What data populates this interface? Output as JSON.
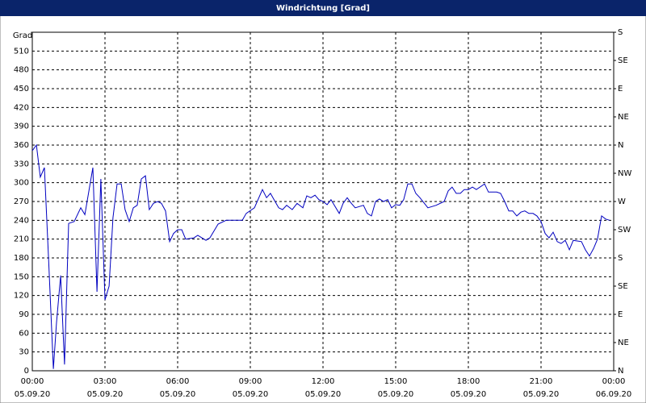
{
  "window_title": "Windrichtung [Grad]",
  "chart_data": {
    "type": "line",
    "ylabel": "Grad",
    "x": [
      0,
      0.17,
      0.33,
      0.5,
      0.67,
      0.87,
      1,
      1.17,
      1.33,
      1.5,
      1.73,
      2,
      2.17,
      2.5,
      2.67,
      2.83,
      3,
      3.17,
      3.33,
      3.5,
      3.67,
      3.83,
      4,
      4.17,
      4.33,
      4.5,
      4.67,
      4.83,
      5,
      5.17,
      5.33,
      5.5,
      5.67,
      5.83,
      6,
      6.17,
      6.33,
      6.67,
      6.83,
      7.17,
      7.33,
      7.67,
      8,
      8.67,
      8.83,
      9.17,
      9.5,
      9.67,
      9.83,
      10.17,
      10.33,
      10.5,
      10.73,
      10.93,
      11.17,
      11.33,
      11.5,
      11.67,
      11.83,
      12,
      12.17,
      12.33,
      12.67,
      12.83,
      13,
      13.17,
      13.33,
      13.67,
      13.83,
      14,
      14.17,
      14.33,
      14.5,
      14.67,
      14.83,
      15,
      15.17,
      15.33,
      15.5,
      15.67,
      15.83,
      16,
      16.33,
      16.67,
      17,
      17.17,
      17.33,
      17.5,
      17.67,
      17.83,
      18,
      18.17,
      18.33,
      18.67,
      18.83,
      19.17,
      19.33,
      19.5,
      19.67,
      19.83,
      20,
      20.17,
      20.33,
      20.5,
      20.67,
      20.83,
      21,
      21.17,
      21.33,
      21.5,
      21.67,
      21.83,
      22,
      22.17,
      22.33,
      22.67,
      22.83,
      23,
      23.17,
      23.33,
      23.5,
      23.67,
      23.83
    ],
    "series": [
      {
        "name": "Windrichtung",
        "color": "#0000c0",
        "values": [
          351,
          360,
          309,
          324,
          180,
          3,
          77,
          152,
          10,
          235,
          238,
          260,
          249,
          324,
          126,
          306,
          113,
          135,
          244,
          298,
          298,
          257,
          238,
          260,
          264,
          306,
          311,
          257,
          267,
          270,
          267,
          255,
          206,
          219,
          225,
          225,
          210,
          212,
          216,
          208,
          212,
          234,
          240,
          240,
          251,
          260,
          289,
          276,
          283,
          260,
          257,
          264,
          257,
          267,
          260,
          279,
          276,
          280,
          273,
          270,
          265,
          273,
          251,
          267,
          276,
          267,
          260,
          264,
          251,
          247,
          270,
          274,
          270,
          273,
          260,
          265,
          264,
          273,
          298,
          298,
          283,
          276,
          260,
          264,
          270,
          287,
          293,
          283,
          283,
          289,
          289,
          293,
          289,
          298,
          285,
          285,
          283,
          270,
          255,
          255,
          247,
          253,
          255,
          251,
          251,
          247,
          238,
          219,
          212,
          221,
          206,
          203,
          208,
          193,
          208,
          206,
          193,
          183,
          195,
          210,
          247,
          242,
          240
        ]
      }
    ],
    "xlim": [
      0,
      24
    ],
    "xticks": [
      {
        "value": 0,
        "label": "00:00"
      },
      {
        "value": 3,
        "label": "03:00"
      },
      {
        "value": 6,
        "label": "06:00"
      },
      {
        "value": 9,
        "label": "09:00"
      },
      {
        "value": 12,
        "label": "12:00"
      },
      {
        "value": 15,
        "label": "15:00"
      },
      {
        "value": 18,
        "label": "18:00"
      },
      {
        "value": 21,
        "label": "21:00"
      },
      {
        "value": 24,
        "label": "00:00"
      }
    ],
    "xtick_dates": [
      "05.09.20",
      "05.09.20",
      "05.09.20",
      "05.09.20",
      "05.09.20",
      "05.09.20",
      "05.09.20",
      "05.09.20",
      "06.09.20"
    ],
    "ylim": [
      0,
      540
    ],
    "yticks": [
      0,
      30,
      60,
      90,
      120,
      150,
      180,
      210,
      240,
      270,
      300,
      330,
      360,
      390,
      420,
      450,
      480,
      510
    ],
    "y2lim": [
      0,
      540
    ],
    "y2ticks": [
      {
        "value": 0,
        "label": "N"
      },
      {
        "value": 45,
        "label": "NE"
      },
      {
        "value": 90,
        "label": "E"
      },
      {
        "value": 135,
        "label": "SE"
      },
      {
        "value": 180,
        "label": "S"
      },
      {
        "value": 225,
        "label": "SW"
      },
      {
        "value": 270,
        "label": "W"
      },
      {
        "value": 315,
        "label": "NW"
      },
      {
        "value": 360,
        "label": "N"
      },
      {
        "value": 405,
        "label": "NE"
      },
      {
        "value": 450,
        "label": "E"
      },
      {
        "value": 495,
        "label": "SE"
      },
      {
        "value": 540,
        "label": "S"
      }
    ],
    "grid": true
  }
}
